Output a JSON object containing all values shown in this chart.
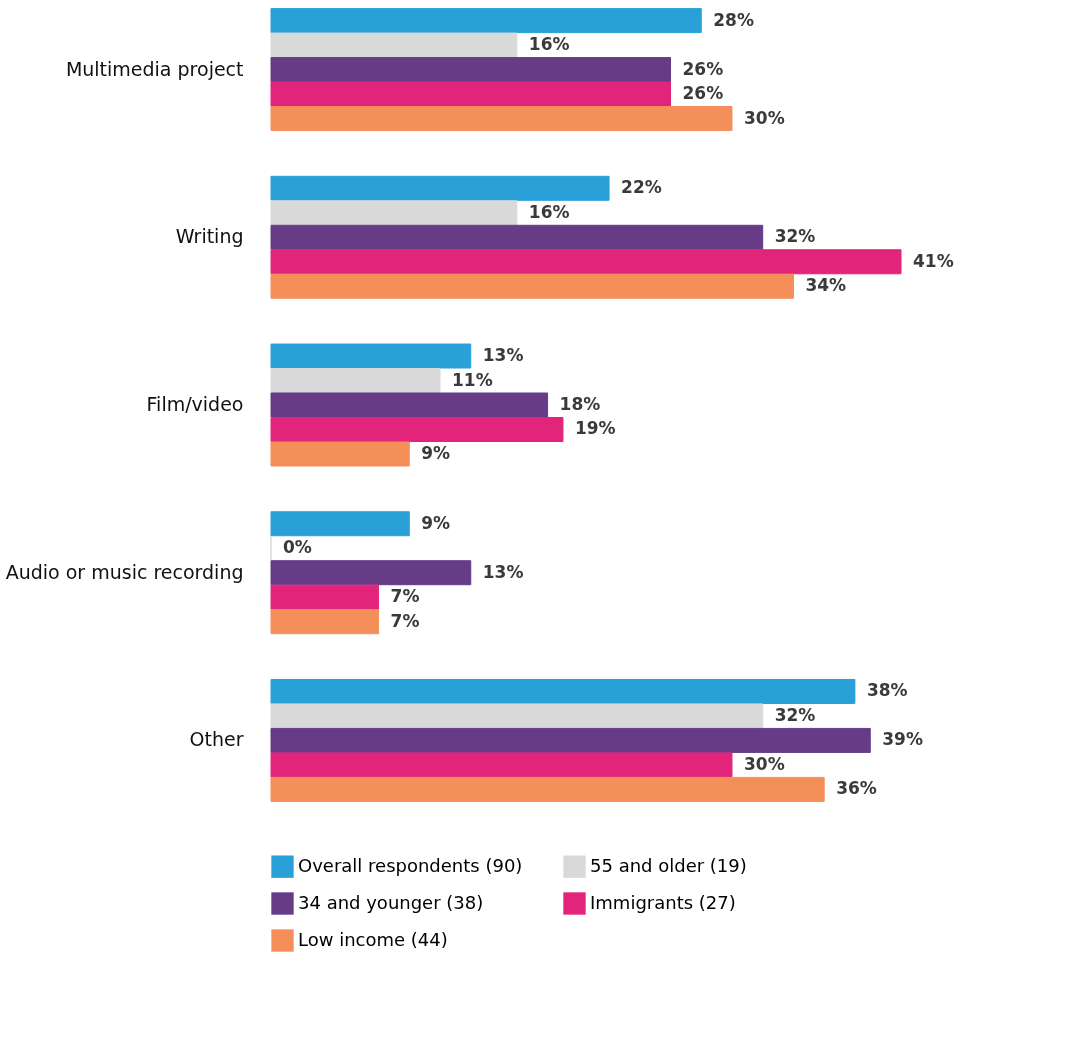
{
  "chart_data": {
    "type": "bar",
    "orientation": "horizontal",
    "categories": [
      "Multimedia project",
      "Writing",
      "Film/video",
      "Audio or music recording",
      "Other"
    ],
    "series": [
      {
        "name": "Overall respondents (90)",
        "color": "#29a0d8",
        "values": [
          28,
          22,
          13,
          9,
          38
        ],
        "value_labels": [
          "28%",
          "22%",
          "13%",
          "9%",
          "38%"
        ]
      },
      {
        "name": "55 and older (19)",
        "color": "#d9d9d9",
        "values": [
          16,
          16,
          11,
          0,
          32
        ],
        "value_labels": [
          "16%",
          "16%",
          "11%",
          "0%",
          "32%"
        ]
      },
      {
        "name": "34 and younger (38)",
        "color": "#663c87",
        "values": [
          26,
          32,
          18,
          13,
          39
        ],
        "value_labels": [
          "26%",
          "32%",
          "18%",
          "13%",
          "39%"
        ]
      },
      {
        "name": "Immigrants  (27)",
        "color": "#e2247a",
        "values": [
          26,
          41,
          19,
          7,
          30
        ],
        "value_labels": [
          "26%",
          "41%",
          "19%",
          "7%",
          "30%"
        ]
      },
      {
        "name": "Low income (44)",
        "color": "#f58f5a",
        "values": [
          30,
          34,
          9,
          7,
          36
        ],
        "value_labels": [
          "30%",
          "34%",
          "9%",
          "7%",
          "36%"
        ]
      }
    ],
    "legend": "bottom",
    "grid": false
  }
}
